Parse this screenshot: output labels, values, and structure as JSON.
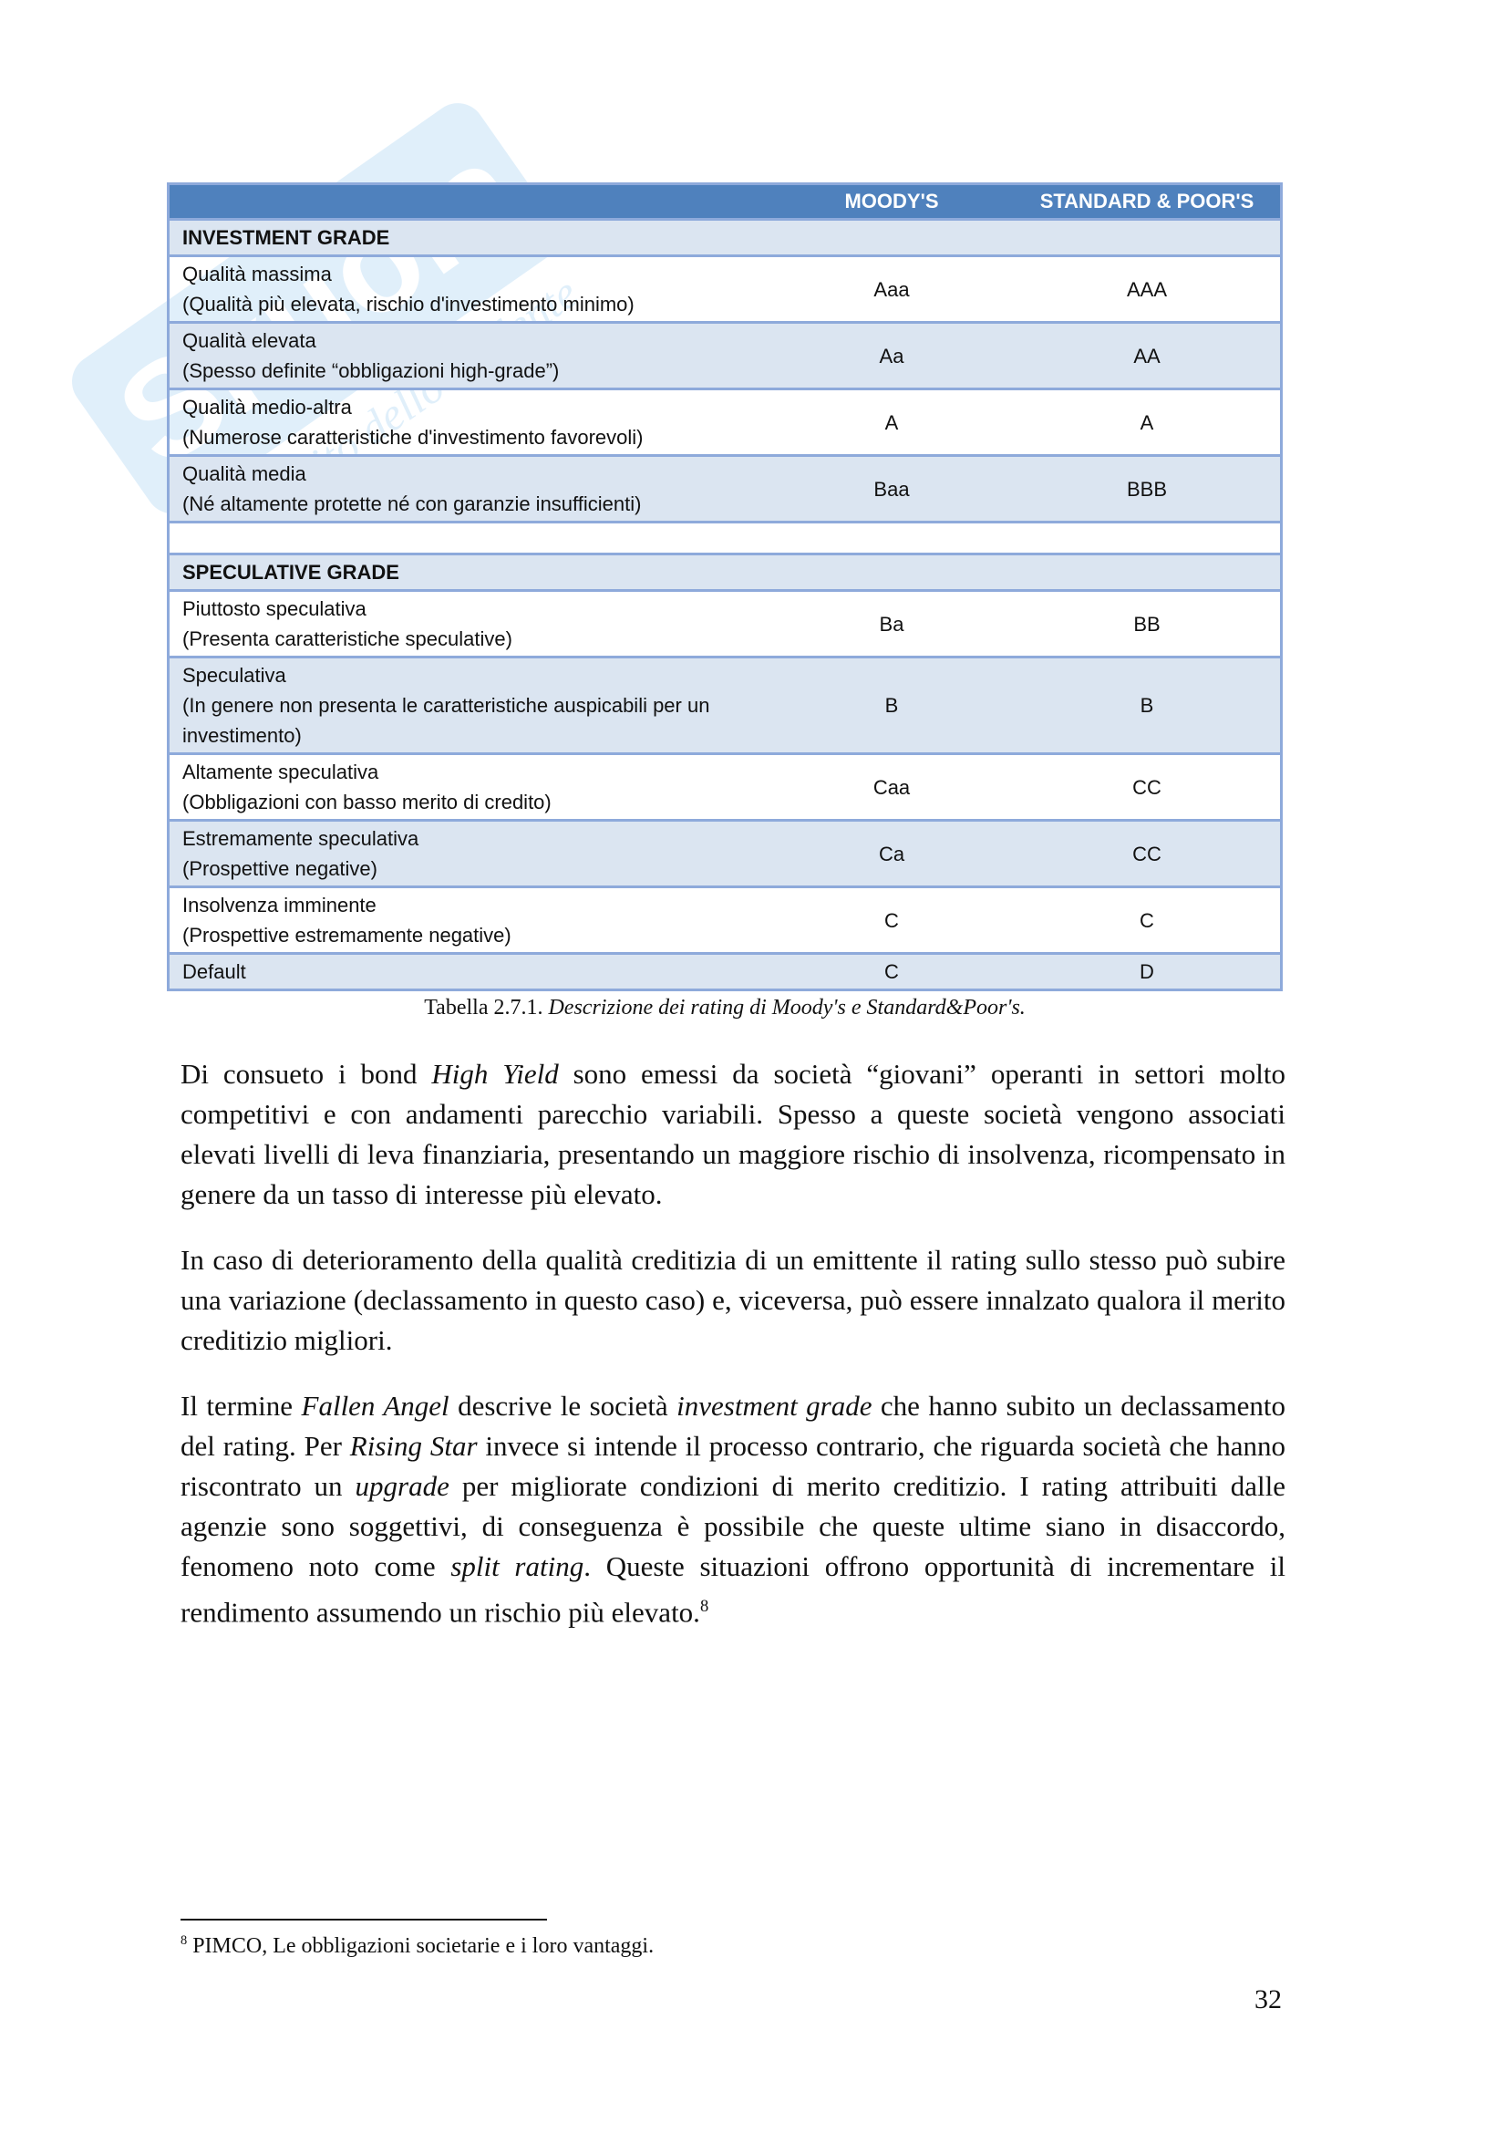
{
  "table": {
    "headers": [
      "",
      "MOODY'S",
      "STANDARD & POOR'S"
    ],
    "investment_grade": "INVESTMENT GRADE",
    "ig_rows": [
      {
        "title": "Qualità massima",
        "desc": "(Qualità più elevata, rischio d'investimento minimo)",
        "moodys": "Aaa",
        "sp": "AAA"
      },
      {
        "title": "Qualità elevata",
        "desc": "(Spesso definite “obbligazioni high-grade”)",
        "moodys": "Aa",
        "sp": "AA"
      },
      {
        "title": "Qualità medio-altra",
        "desc": "(Numerose caratteristiche d'investimento favorevoli)",
        "moodys": "A",
        "sp": "A"
      },
      {
        "title": "Qualità media",
        "desc": "(Né altamente protette né con garanzie insufficienti)",
        "moodys": "Baa",
        "sp": "BBB"
      }
    ],
    "speculative_grade": "SPECULATIVE GRADE",
    "sg_rows": [
      {
        "title": "Piuttosto speculativa",
        "desc": "(Presenta caratteristiche speculative)",
        "moodys": "Ba",
        "sp": "BB"
      },
      {
        "title": "Speculativa",
        "desc": "(In genere non presenta le caratteristiche auspicabili per un investimento)",
        "moodys": "B",
        "sp": "B"
      },
      {
        "title": "Altamente speculativa",
        "desc": "(Obbligazioni con basso merito di credito)",
        "moodys": "Caa",
        "sp": "CC"
      },
      {
        "title": "Estremamente speculativa",
        "desc": "(Prospettive negative)",
        "moodys": "Ca",
        "sp": "CC"
      },
      {
        "title": "Insolvenza imminente",
        "desc": "(Prospettive estremamente negative)",
        "moodys": "C",
        "sp": "C"
      },
      {
        "title": "Default",
        "desc": "",
        "moodys": "C",
        "sp": "D"
      }
    ]
  },
  "caption": {
    "label": "Tabella 2.7.1.",
    "text": "Descrizione dei rating di Moody's e Standard&Poor's."
  },
  "watermark": "Skuola.net – il sito dello studente",
  "footnote": {
    "num": "8",
    "text": "PIMCO, Le obbligazioni societarie e i loro vantaggi."
  },
  "page_number": "32"
}
